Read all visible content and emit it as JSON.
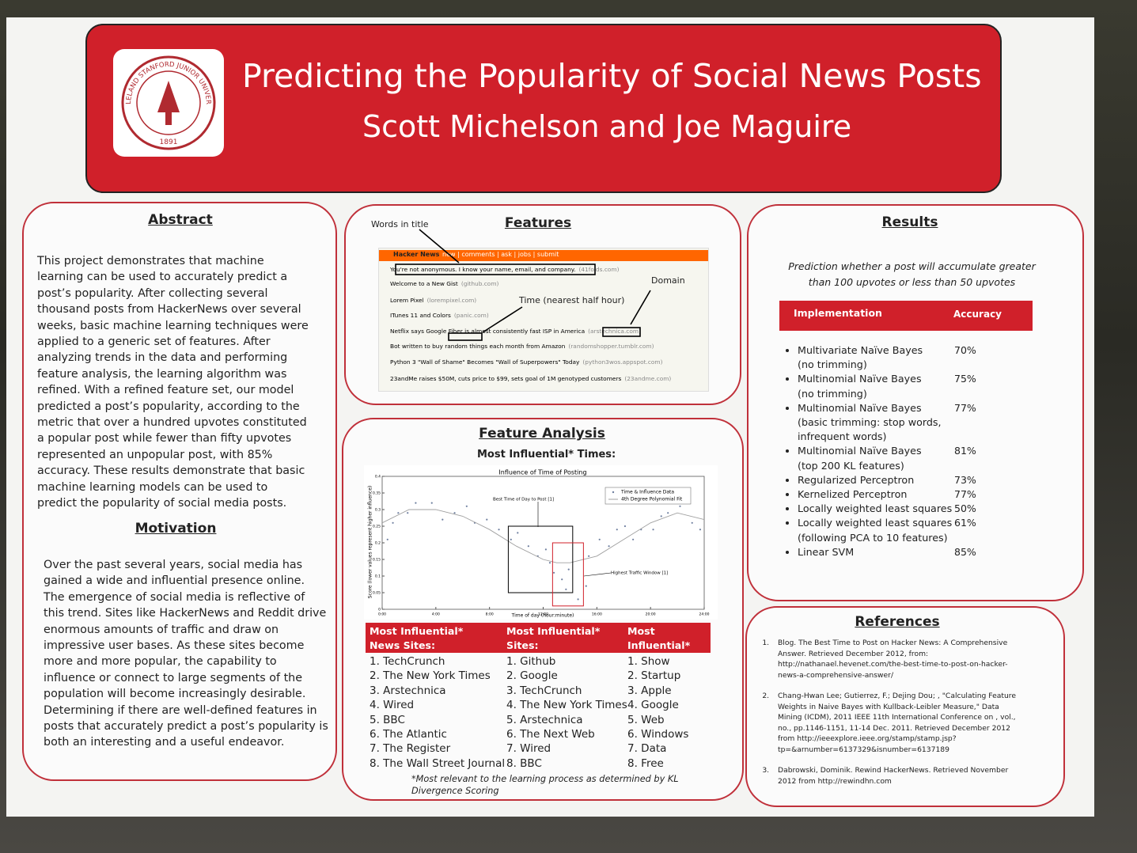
{
  "header": {
    "title": "Predicting the Popularity of Social News Posts",
    "authors": "Scott Michelson and Joe Maguire",
    "seal": {
      "text": "LELAND STANFORD JUNIOR UNIVERSITY",
      "year": "1891"
    }
  },
  "abstract": {
    "heading": "Abstract",
    "text": "This project demonstrates that machine learning can be used to accurately predict a post’s popularity. After collecting several thousand posts from HackerNews over several weeks, basic machine learning techniques were applied to a generic set of features. After analyzing trends in the data and performing feature analysis, the learning algorithm was refined. With a refined feature set, our model predicted a post’s popularity, according to the metric that over a hundred upvotes constituted a popular post while fewer than fifty upvotes represented an unpopular post, with 85% accuracy. These results demonstrate that basic machine learning models can be used to predict the popularity of social media posts."
  },
  "motivation": {
    "heading": "Motivation",
    "text": "Over the past several years, social media has gained a wide and influential presence online. The emergence of social media is reflective of this trend. Sites like HackerNews and Reddit drive enormous amounts of traffic and draw on impressive user bases. As these sites become more and more popular, the capability to influence or connect to large segments of the population will become increasingly desirable. Determining if there are well-defined features in posts that accurately predict a post’s popularity is both an interesting and a useful endeavor."
  },
  "features": {
    "heading": "Features",
    "annotations": [
      "Words in title",
      "Domain",
      "Time (nearest half hour)"
    ],
    "screenshot": {
      "site": "Hacker News",
      "nav": "new | comments | ask | jobs | submit",
      "items": [
        {
          "title": "You're not anonymous. I know your name, email, and company.",
          "domain": "(41folds.com)"
        },
        {
          "title": "Welcome to a New Gist",
          "domain": "(github.com)"
        },
        {
          "title": "Lorem Pixel",
          "domain": "(lorempixel.com)"
        },
        {
          "title": "ITunes 11 and Colors",
          "domain": "(panic.com)"
        },
        {
          "title": "Netflix says Google Fiber is almost consistently fast ISP in America",
          "domain": "(arstechnica.com)"
        },
        {
          "title": "Bot written to buy random things each month from Amazon",
          "domain": "(randomshopper.tumblr.com)"
        },
        {
          "title": "Python 3 \"Wall of Shame\" Becomes \"Wall of Superpowers\" Today",
          "domain": "(python3wos.appspot.com)"
        },
        {
          "title": "23andMe raises $50M, cuts price to $99, sets goal of 1M genotyped customers",
          "domain": "(23andme.com)"
        }
      ]
    }
  },
  "feature_analysis": {
    "heading": "Feature Analysis",
    "subheading": "Most Influential* Times:",
    "chart_data": {
      "type": "scatter",
      "title": "Influence of Time of Posting",
      "x_label": "Time of day (hour:minute)",
      "y_label": "Score (lower values represent higher influence)",
      "xlim": [
        0,
        24
      ],
      "ylim": [
        0,
        0.4
      ],
      "xticks": [
        {
          "value": 0,
          "label": "0:00"
        },
        {
          "value": 4,
          "label": "4:00"
        },
        {
          "value": 8,
          "label": "8:00"
        },
        {
          "value": 12,
          "label": "12:00"
        },
        {
          "value": 16,
          "label": "16:00"
        },
        {
          "value": 20,
          "label": "20:00"
        },
        {
          "value": 24,
          "label": "24:00"
        }
      ],
      "yticks": [
        0,
        0.05,
        0.1,
        0.15,
        0.2,
        0.25,
        0.3,
        0.35,
        0.4
      ],
      "legend": "upper right",
      "series": [
        {
          "name": "Time & Influence Data",
          "color": "#7080a0",
          "x": [
            0.4,
            0.8,
            1.2,
            1.9,
            2.5,
            3.7,
            4.5,
            5.4,
            6.3,
            6.9,
            7.8,
            8.7,
            9.6,
            10.1,
            10.9,
            11.6,
            12.2,
            12.5,
            12.8,
            13.4,
            13.9,
            13.7,
            14.6,
            15.2,
            15.4,
            16.2,
            16.9,
            17.5,
            18.1,
            18.7,
            19.3,
            20.2,
            20.8,
            21.3,
            22.2,
            23.1,
            23.7
          ],
          "values": [
            0.21,
            0.26,
            0.29,
            0.29,
            0.32,
            0.32,
            0.27,
            0.29,
            0.31,
            0.26,
            0.27,
            0.24,
            0.21,
            0.23,
            0.19,
            0.16,
            0.18,
            0.14,
            0.11,
            0.09,
            0.12,
            0.06,
            0.03,
            0.07,
            0.16,
            0.21,
            0.19,
            0.24,
            0.25,
            0.21,
            0.24,
            0.24,
            0.28,
            0.29,
            0.31,
            0.26,
            0.24
          ]
        },
        {
          "name": "4th Degree Polynomial Fit",
          "color": "#a0a0a0",
          "line": true,
          "x": [
            0,
            2,
            4,
            6,
            8,
            10,
            12,
            13,
            14,
            16,
            18,
            20,
            22,
            24
          ],
          "values": [
            0.26,
            0.3,
            0.3,
            0.28,
            0.24,
            0.19,
            0.15,
            0.14,
            0.14,
            0.16,
            0.21,
            0.26,
            0.29,
            0.27
          ]
        }
      ],
      "annotations": [
        {
          "text": "Best Time of Day to Post [1]",
          "x": [
            9.4,
            14.2
          ],
          "y": [
            0.05,
            0.25
          ],
          "color": "#000000"
        },
        {
          "text": "Highest Traffic Window [1]",
          "x": [
            12.7,
            15
          ],
          "y": [
            0.01,
            0.2
          ],
          "color": "#d0202a"
        }
      ]
    },
    "table": {
      "columns": [
        {
          "header": "Most Influential* News Sites:",
          "items": [
            "TechCrunch",
            "The New York Times",
            "Arstechnica",
            "Wired",
            "BBC",
            "The Atlantic",
            "The Register",
            "The Wall Street Journal"
          ]
        },
        {
          "header": "Most Influential* Sites:",
          "items": [
            "Github",
            "Google",
            "TechCrunch",
            "The New York Times",
            "Arstechnica",
            "The Next Web",
            "Wired",
            "BBC"
          ]
        },
        {
          "header": "Most Influential* Words:",
          "items": [
            "Show",
            "Startup",
            "Apple",
            "Google",
            "Web",
            "Windows",
            "Data",
            "Free"
          ]
        }
      ]
    },
    "footnote": "*Most relevant to the learning process as determined by KL Divergence Scoring"
  },
  "results": {
    "heading": "Results",
    "subtitle": "Prediction whether a post will accumulate greater than 100 upvotes or less than 50 upvotes",
    "table": {
      "header": [
        "Implementation",
        "Accuracy"
      ],
      "rows": [
        {
          "name": "Multivariate Naïve Bayes",
          "note": "(no trimming)",
          "accuracy": "70%"
        },
        {
          "name": "Multinomial Naïve Bayes",
          "note": "(no trimming)",
          "accuracy": "75%"
        },
        {
          "name": "Multinomial Naïve Bayes",
          "note": "(basic trimming: stop words, infrequent words)",
          "accuracy": "77%"
        },
        {
          "name": "Multinomial Naïve Bayes",
          "note": "(top 200 KL features)",
          "accuracy": "81%"
        },
        {
          "name": "Regularized Perceptron",
          "accuracy": "73%"
        },
        {
          "name": "Kernelized Perceptron",
          "accuracy": "77%"
        },
        {
          "name": "Locally weighted least squares",
          "accuracy": "50%"
        },
        {
          "name": "Locally weighted least squares",
          "note": "(following PCA to 10 features)",
          "accuracy": "61%"
        },
        {
          "name": "Linear SVM",
          "accuracy": "85%"
        }
      ]
    }
  },
  "references": {
    "heading": "References",
    "items": [
      "Blog. The Best Time to Post on Hacker News: A Comprehensive Answer. Retrieved December 2012, from: http://nathanael.hevenet.com/the-best-time-to-post-on-hacker-news-a-comprehensive-answer/",
      "Chang-Hwan Lee; Gutierrez, F.; Dejing Dou; , \"Calculating Feature Weights in Naive Bayes with Kullback-Leibler Measure,\" Data Mining (ICDM), 2011 IEEE 11th International Conference on , vol., no., pp.1146-1151, 11-14 Dec. 2011. Retrieved December 2012 from http://ieeexplore.ieee.org/stamp/stamp.jsp?tp=&arnumber=6137329&isnumber=6137189",
      "Dabrowski, Dominik. Rewind HackerNews. Retrieved November 2012 from http://rewindhn.com"
    ]
  }
}
